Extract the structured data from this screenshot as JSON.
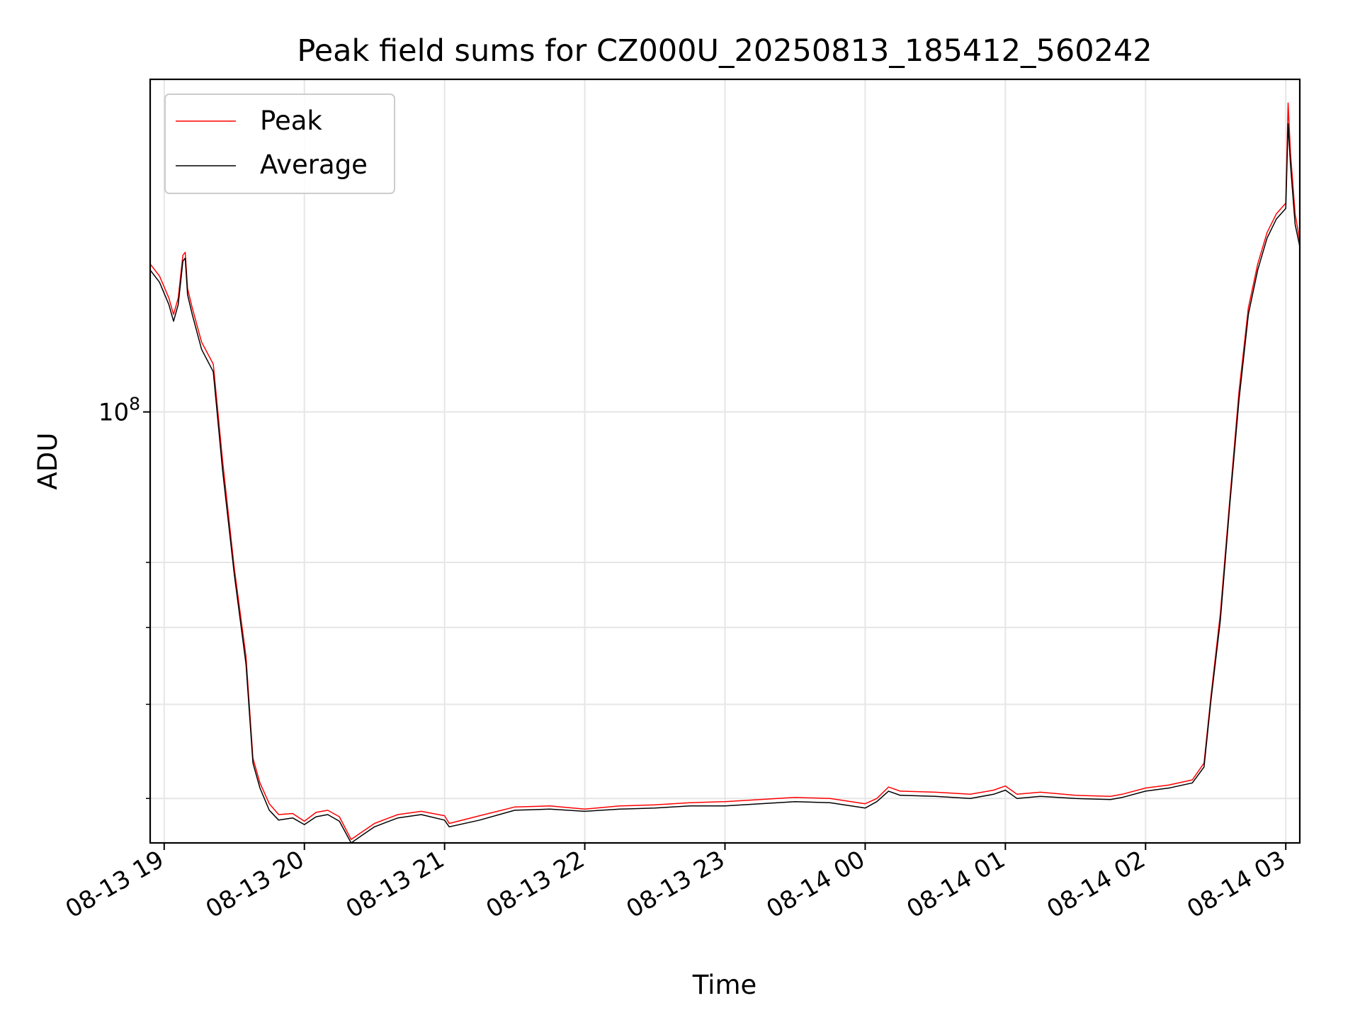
{
  "chart_data": {
    "type": "line",
    "title": "Peak field sums for CZ000U_20250813_185412_560242",
    "xlabel": "Time",
    "ylabel": "ADU",
    "yscale": "log",
    "xlim": [
      "2025-08-13T18:54",
      "2025-08-14T03:06"
    ],
    "ylim": [
      36000000,
      220000000
    ],
    "x_ticks": [
      "2025-08-13T19:00",
      "2025-08-13T20:00",
      "2025-08-13T21:00",
      "2025-08-13T22:00",
      "2025-08-13T23:00",
      "2025-08-14T00:00",
      "2025-08-14T01:00",
      "2025-08-14T02:00",
      "2025-08-14T03:00"
    ],
    "x_tick_labels": [
      "08-13 19",
      "08-13 20",
      "08-13 21",
      "08-13 22",
      "08-13 23",
      "08-14 00",
      "08-14 01",
      "08-14 02",
      "08-14 03"
    ],
    "y_major_ticks": [
      100000000
    ],
    "y_major_tick_labels": [
      {
        "base": "10",
        "exp": "8"
      }
    ],
    "y_minor_ticks": [
      40000000,
      50000000,
      60000000,
      70000000
    ],
    "grid": true,
    "legend": "upper-left",
    "series": [
      {
        "name": "Peak",
        "color": "#ff0000",
        "x": [
          "2025-08-13T18:54",
          "2025-08-13T18:58",
          "2025-08-13T19:02",
          "2025-08-13T19:04",
          "2025-08-13T19:06",
          "2025-08-13T19:08",
          "2025-08-13T19:09",
          "2025-08-13T19:10",
          "2025-08-13T19:12",
          "2025-08-13T19:16",
          "2025-08-13T19:21",
          "2025-08-13T19:25",
          "2025-08-13T19:30",
          "2025-08-13T19:35",
          "2025-08-13T19:38",
          "2025-08-13T19:41",
          "2025-08-13T19:45",
          "2025-08-13T19:49",
          "2025-08-13T19:55",
          "2025-08-13T20:00",
          "2025-08-13T20:05",
          "2025-08-13T20:10",
          "2025-08-13T20:15",
          "2025-08-13T20:20",
          "2025-08-13T20:25",
          "2025-08-13T20:30",
          "2025-08-13T20:35",
          "2025-08-13T20:40",
          "2025-08-13T20:50",
          "2025-08-13T21:00",
          "2025-08-13T21:02",
          "2025-08-13T21:15",
          "2025-08-13T21:30",
          "2025-08-13T21:45",
          "2025-08-13T22:00",
          "2025-08-13T22:15",
          "2025-08-13T22:30",
          "2025-08-13T22:45",
          "2025-08-13T23:00",
          "2025-08-13T23:15",
          "2025-08-13T23:30",
          "2025-08-13T23:45",
          "2025-08-14T00:00",
          "2025-08-14T00:05",
          "2025-08-14T00:10",
          "2025-08-14T00:15",
          "2025-08-14T00:30",
          "2025-08-14T00:45",
          "2025-08-14T00:55",
          "2025-08-14T01:00",
          "2025-08-14T01:05",
          "2025-08-14T01:15",
          "2025-08-14T01:30",
          "2025-08-14T01:45",
          "2025-08-14T01:50",
          "2025-08-14T02:00",
          "2025-08-14T02:10",
          "2025-08-14T02:20",
          "2025-08-14T02:25",
          "2025-08-14T02:28",
          "2025-08-14T02:32",
          "2025-08-14T02:36",
          "2025-08-14T02:40",
          "2025-08-14T02:44",
          "2025-08-14T02:48",
          "2025-08-14T02:52",
          "2025-08-14T02:56",
          "2025-08-14T03:00",
          "2025-08-14T03:01",
          "2025-08-14T03:02",
          "2025-08-14T03:04",
          "2025-08-14T03:06"
        ],
        "y": [
          142000000,
          138000000,
          131000000,
          126000000,
          131000000,
          145000000,
          146000000,
          134000000,
          128000000,
          118000000,
          112000000,
          89000000,
          69000000,
          56000000,
          44000000,
          41500000,
          39500000,
          38500000,
          38600000,
          37900000,
          38700000,
          38900000,
          38300000,
          36300000,
          37000000,
          37700000,
          38100000,
          38500000,
          38800000,
          38400000,
          37700000,
          38400000,
          39200000,
          39300000,
          39000000,
          39300000,
          39400000,
          39600000,
          39700000,
          39900000,
          40100000,
          40000000,
          39500000,
          40000000,
          41100000,
          40700000,
          40600000,
          40400000,
          40800000,
          41200000,
          40400000,
          40600000,
          40300000,
          40200000,
          40400000,
          41000000,
          41300000,
          41800000,
          43500000,
          51000000,
          62000000,
          81000000,
          105000000,
          128000000,
          142000000,
          153000000,
          160000000,
          164000000,
          208000000,
          185000000,
          160000000,
          150000000
        ]
      },
      {
        "name": "Average",
        "color": "#000000",
        "x": [
          "2025-08-13T18:54",
          "2025-08-13T18:58",
          "2025-08-13T19:02",
          "2025-08-13T19:04",
          "2025-08-13T19:06",
          "2025-08-13T19:08",
          "2025-08-13T19:09",
          "2025-08-13T19:10",
          "2025-08-13T19:12",
          "2025-08-13T19:16",
          "2025-08-13T19:21",
          "2025-08-13T19:25",
          "2025-08-13T19:30",
          "2025-08-13T19:35",
          "2025-08-13T19:38",
          "2025-08-13T19:41",
          "2025-08-13T19:45",
          "2025-08-13T19:49",
          "2025-08-13T19:55",
          "2025-08-13T20:00",
          "2025-08-13T20:05",
          "2025-08-13T20:10",
          "2025-08-13T20:15",
          "2025-08-13T20:20",
          "2025-08-13T20:25",
          "2025-08-13T20:30",
          "2025-08-13T20:35",
          "2025-08-13T20:40",
          "2025-08-13T20:50",
          "2025-08-13T21:00",
          "2025-08-13T21:02",
          "2025-08-13T21:15",
          "2025-08-13T21:30",
          "2025-08-13T21:45",
          "2025-08-13T22:00",
          "2025-08-13T22:15",
          "2025-08-13T22:30",
          "2025-08-13T22:45",
          "2025-08-13T23:00",
          "2025-08-13T23:15",
          "2025-08-13T23:30",
          "2025-08-13T23:45",
          "2025-08-14T00:00",
          "2025-08-14T00:05",
          "2025-08-14T00:10",
          "2025-08-14T00:15",
          "2025-08-14T00:30",
          "2025-08-14T00:45",
          "2025-08-14T00:55",
          "2025-08-14T01:00",
          "2025-08-14T01:05",
          "2025-08-14T01:15",
          "2025-08-14T01:30",
          "2025-08-14T01:45",
          "2025-08-14T01:50",
          "2025-08-14T02:00",
          "2025-08-14T02:10",
          "2025-08-14T02:20",
          "2025-08-14T02:25",
          "2025-08-14T02:28",
          "2025-08-14T02:32",
          "2025-08-14T02:36",
          "2025-08-14T02:40",
          "2025-08-14T02:44",
          "2025-08-14T02:48",
          "2025-08-14T02:52",
          "2025-08-14T02:56",
          "2025-08-14T03:00",
          "2025-08-14T03:01",
          "2025-08-14T03:02",
          "2025-08-14T03:04",
          "2025-08-14T03:06"
        ],
        "y": [
          140000000,
          136000000,
          129000000,
          124000000,
          129000000,
          143000000,
          144000000,
          132000000,
          126000000,
          116000000,
          110000000,
          87000000,
          68000000,
          55000000,
          43500000,
          41000000,
          38900000,
          38000000,
          38200000,
          37600000,
          38300000,
          38500000,
          37900000,
          36000000,
          36700000,
          37400000,
          37800000,
          38200000,
          38500000,
          38000000,
          37400000,
          38000000,
          38900000,
          39000000,
          38800000,
          39000000,
          39100000,
          39300000,
          39300000,
          39500000,
          39700000,
          39600000,
          39100000,
          39700000,
          40700000,
          40300000,
          40200000,
          40000000,
          40400000,
          40800000,
          40000000,
          40200000,
          40000000,
          39900000,
          40100000,
          40700000,
          41000000,
          41500000,
          43100000,
          50500000,
          61000000,
          80000000,
          103000000,
          126000000,
          140000000,
          151000000,
          158000000,
          162000000,
          198000000,
          180000000,
          156000000,
          148000000
        ]
      }
    ]
  }
}
